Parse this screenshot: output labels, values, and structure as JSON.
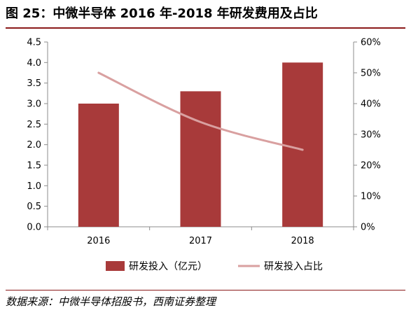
{
  "title": "图 25：中微半导体 2016 年-2018 年研发费用及占比",
  "source": "数据来源：中微半导体招股书，西南证券整理",
  "chart_data": {
    "type": "bar",
    "categories": [
      "2016",
      "2017",
      "2018"
    ],
    "series": [
      {
        "name": "研发投入（亿元）",
        "type": "bar",
        "axis": "left",
        "values": [
          3.0,
          3.3,
          4.0
        ],
        "color": "#a83a3a"
      },
      {
        "name": "研发投入占比",
        "type": "line",
        "axis": "right",
        "values": [
          0.5,
          0.34,
          0.25
        ],
        "color": "#d9a0a0"
      }
    ],
    "y_left": {
      "lim": [
        0,
        4.5
      ],
      "ticks": [
        "0.0",
        "0.5",
        "1.0",
        "1.5",
        "2.0",
        "2.5",
        "3.0",
        "3.5",
        "4.0",
        "4.5"
      ]
    },
    "y_right": {
      "lim": [
        0,
        0.6
      ],
      "ticks": [
        "0%",
        "10%",
        "20%",
        "30%",
        "40%",
        "50%",
        "60%"
      ]
    },
    "grid": false,
    "legend_position": "bottom"
  }
}
